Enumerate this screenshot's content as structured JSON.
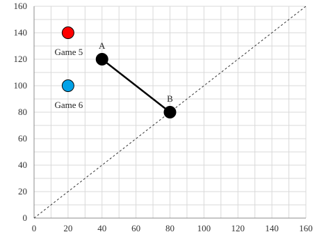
{
  "chart_data": {
    "type": "scatter",
    "title": "",
    "xlabel": "",
    "ylabel": "",
    "xlim": [
      0,
      160
    ],
    "ylim": [
      0,
      160
    ],
    "x_ticks": [
      0,
      20,
      40,
      60,
      80,
      100,
      120,
      140,
      160
    ],
    "y_ticks": [
      0,
      20,
      40,
      60,
      80,
      100,
      120,
      140,
      160
    ],
    "grid": true,
    "legend": "none",
    "reference_line": {
      "from": [
        0,
        0
      ],
      "to": [
        160,
        160
      ],
      "style": "dashed"
    },
    "segment": {
      "from": "A",
      "to": "B"
    },
    "points": [
      {
        "label": "Game 5",
        "x": 20,
        "y": 140,
        "color": "#ff0000",
        "label_position": "below"
      },
      {
        "label": "Game 6",
        "x": 20,
        "y": 100,
        "color": "#00a2e8",
        "label_position": "below"
      },
      {
        "label": "A",
        "x": 40,
        "y": 120,
        "color": "#000000",
        "label_position": "above"
      },
      {
        "label": "B",
        "x": 80,
        "y": 80,
        "color": "#000000",
        "label_position": "above"
      }
    ]
  }
}
